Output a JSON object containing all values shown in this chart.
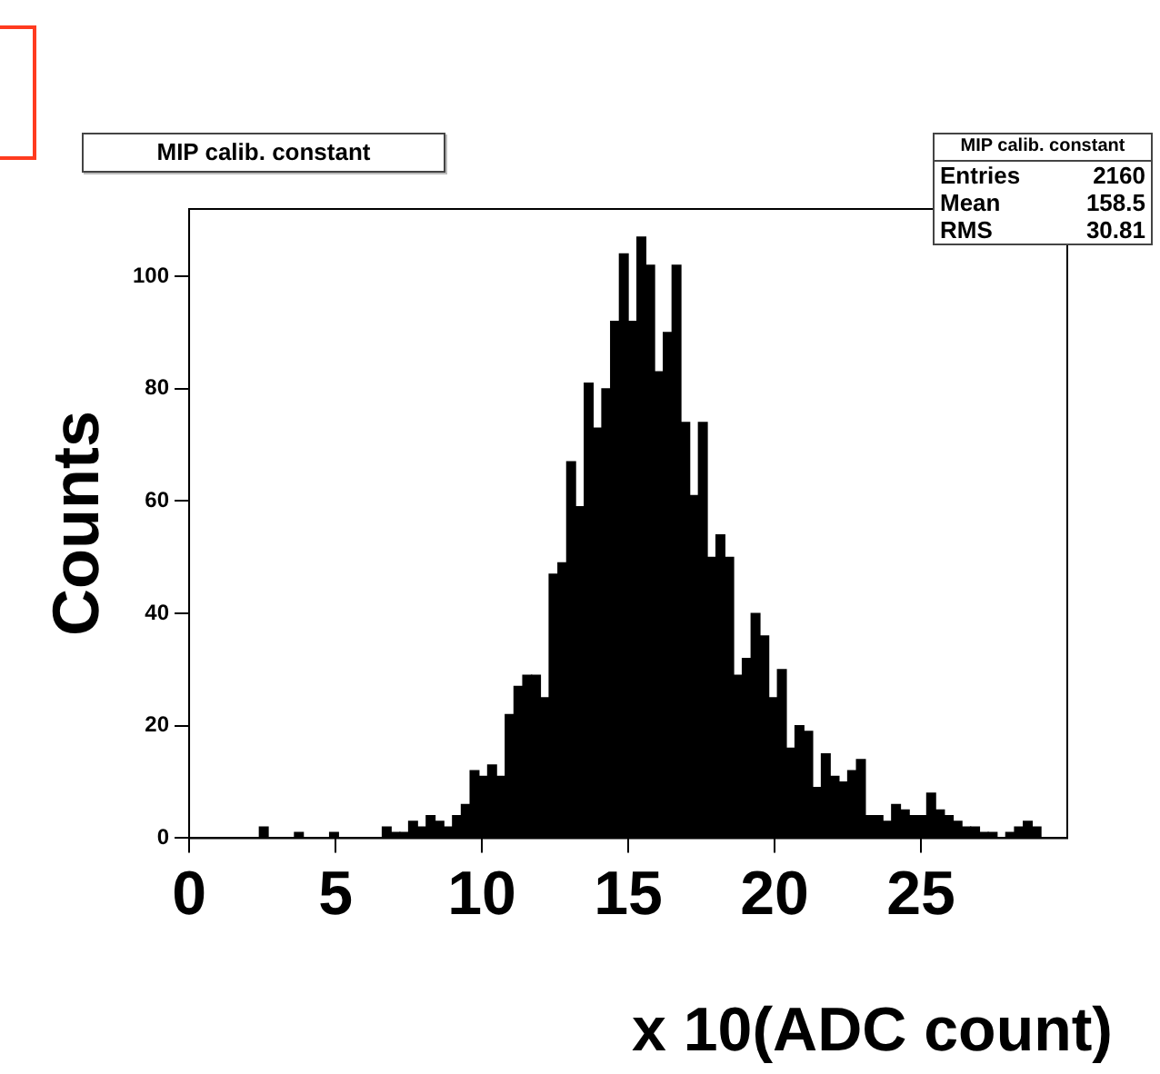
{
  "chart_data": {
    "type": "histogram",
    "title": "MIP calib. constant",
    "xlabel": "x 10(ADC count)",
    "ylabel": "Counts",
    "annotations": [
      "MIP calib. constant",
      "Entries 2160",
      "Mean 158.5",
      "RMS 30.81"
    ],
    "bins": [
      0,
      0.3,
      0.6,
      0.9,
      1.2,
      1.5,
      1.8,
      2.1,
      2.4,
      2.7,
      3,
      3.3,
      3.6,
      3.9,
      4.2,
      4.5,
      4.8,
      5.1,
      5.4,
      5.7,
      6,
      6.3,
      6.6,
      6.9,
      7.2,
      7.5,
      7.8,
      8.1,
      8.4,
      8.7,
      9,
      9.3,
      9.6,
      9.9,
      10.2,
      10.5,
      10.8,
      11.1,
      11.4,
      11.7,
      12,
      12.3,
      12.6,
      12.9,
      13.2,
      13.5,
      13.8,
      14.1,
      14.4,
      14.7,
      15,
      15.3,
      15.6,
      15.9,
      16.2,
      16.5,
      16.8,
      17.1,
      17.4,
      17.7,
      18,
      18.3,
      18.6,
      18.9,
      19.2,
      19.5,
      19.8,
      20.1,
      20.4,
      20.7,
      21,
      21.3,
      21.6,
      21.9,
      22.2,
      22.5,
      22.8,
      23.1,
      23.4,
      23.7,
      24,
      24.3,
      24.6,
      24.9,
      25.2,
      25.5,
      25.8,
      26.1,
      26.4,
      26.7,
      27,
      27.3,
      27.6,
      27.9,
      28.2,
      28.5,
      28.8,
      29.1,
      29.4,
      29.7,
      30
    ],
    "values": [
      0,
      0,
      0,
      0,
      0,
      0,
      0,
      0,
      2,
      0,
      0,
      0,
      1,
      0,
      0,
      0,
      1,
      0,
      0,
      0,
      0,
      0,
      2,
      1,
      1,
      3,
      2,
      4,
      3,
      2,
      4,
      6,
      12,
      11,
      13,
      11,
      22,
      27,
      29,
      29,
      25,
      47,
      49,
      67,
      59,
      81,
      73,
      80,
      92,
      104,
      92,
      107,
      102,
      83,
      90,
      102,
      74,
      61,
      74,
      50,
      54,
      50,
      29,
      32,
      40,
      36,
      25,
      30,
      16,
      20,
      19,
      9,
      15,
      11,
      10,
      12,
      14,
      4,
      4,
      3,
      6,
      5,
      4,
      4,
      8,
      5,
      4,
      3,
      2,
      2,
      1,
      1,
      0,
      1,
      2,
      3,
      2,
      0,
      0,
      0
    ],
    "color": "#000000",
    "xlim": [
      0,
      30
    ],
    "xticks": [
      0,
      5,
      10,
      15,
      20,
      25
    ],
    "ylim": [
      0,
      112
    ],
    "yticks": [
      0,
      20,
      40,
      60,
      80,
      100
    ]
  }
}
